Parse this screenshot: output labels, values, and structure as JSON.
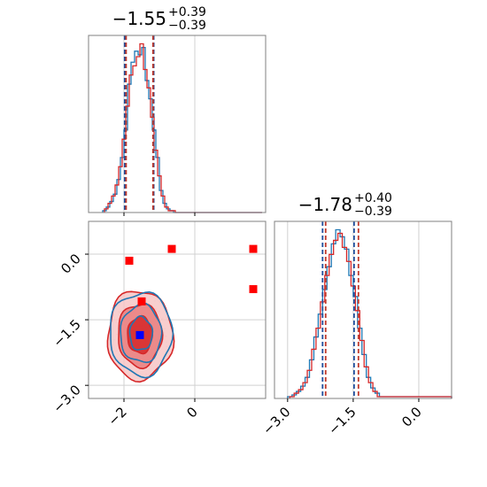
{
  "chart_data": [
    {
      "type": "histogram",
      "panel": "top-left",
      "title": {
        "median": "−1.55",
        "plus": "+0.39",
        "minus": "−0.39"
      },
      "xlim": [
        -3.0,
        2.0
      ],
      "x_grid": [
        -2,
        0
      ],
      "quantile_lines": [
        {
          "color": "#1f4e9c",
          "values": [
            -1.98,
            -1.16
          ]
        },
        {
          "color": "#c0392b",
          "values": [
            -1.94,
            -1.18
          ]
        }
      ],
      "series": [
        {
          "color": "#1f77b4",
          "bins": [
            -2.6,
            -2.5,
            -2.4,
            -2.3,
            -2.2,
            -2.1,
            -2.0,
            -1.9,
            -1.8,
            -1.7,
            -1.6,
            -1.5,
            -1.4,
            -1.3,
            -1.2,
            -1.1,
            -1.0,
            -0.9,
            -0.8,
            -0.7,
            -0.6,
            -0.5,
            1.9
          ],
          "counts": [
            1,
            3,
            6,
            10,
            18,
            30,
            45,
            70,
            82,
            88,
            86,
            90,
            72,
            62,
            45,
            30,
            12,
            5,
            2,
            1,
            0,
            0
          ]
        },
        {
          "color": "#d62728",
          "bins": [
            -2.55,
            -2.45,
            -2.35,
            -2.25,
            -2.15,
            -2.05,
            -1.95,
            -1.85,
            -1.75,
            -1.65,
            -1.55,
            -1.45,
            -1.35,
            -1.25,
            -1.15,
            -1.05,
            -0.95,
            -0.85,
            -0.75,
            -0.65,
            -0.55,
            1.9
          ],
          "counts": [
            2,
            5,
            9,
            15,
            25,
            40,
            58,
            75,
            80,
            85,
            92,
            78,
            68,
            52,
            34,
            20,
            9,
            3,
            1,
            1,
            0
          ]
        }
      ]
    },
    {
      "type": "scatter-contour",
      "panel": "bottom-left",
      "xlim": [
        -3.0,
        2.0
      ],
      "ylim": [
        -3.3,
        0.75
      ],
      "x_ticks": [
        "−2",
        "0"
      ],
      "x_tick_values": [
        -2,
        0
      ],
      "y_ticks": [
        "0.0",
        "−1.5",
        "−3.0"
      ],
      "y_tick_values": [
        0,
        -1.5,
        -3.0
      ],
      "red_markers": [
        {
          "x": -1.85,
          "y": -0.15
        },
        {
          "x": -0.65,
          "y": 0.12
        },
        {
          "x": 1.65,
          "y": 0.12
        },
        {
          "x": 1.65,
          "y": -0.8
        },
        {
          "x": -1.5,
          "y": -1.08
        }
      ],
      "blue_markers": [
        {
          "x": -1.55,
          "y": -1.85
        }
      ],
      "contours": [
        {
          "color": "#d62728",
          "center": [
            -1.55,
            -1.85
          ],
          "radii": [
            [
              0.35,
              0.42
            ],
            [
              0.62,
              0.72
            ],
            [
              0.92,
              1.02
            ]
          ]
        },
        {
          "color": "#1f77b4",
          "center": [
            -1.52,
            -1.82
          ],
          "radii": [
            [
              0.32,
              0.38
            ],
            [
              0.58,
              0.66
            ],
            [
              0.88,
              0.95
            ]
          ]
        }
      ]
    },
    {
      "type": "histogram",
      "panel": "bottom-right",
      "title": {
        "median": "−1.78",
        "plus": "+0.40",
        "minus": "−0.39"
      },
      "xlim": [
        -3.3,
        0.75
      ],
      "x_ticks": [
        "−3.0",
        "−1.5",
        "0.0"
      ],
      "x_tick_values": [
        -3.0,
        -1.5,
        0.0
      ],
      "quantile_lines": [
        {
          "color": "#1f4e9c",
          "values": [
            -2.2,
            -1.48
          ]
        },
        {
          "color": "#c0392b",
          "values": [
            -2.13,
            -1.38
          ]
        }
      ],
      "series": [
        {
          "color": "#1f77b4",
          "bins": [
            -3.0,
            -2.9,
            -2.8,
            -2.7,
            -2.6,
            -2.5,
            -2.4,
            -2.3,
            -2.2,
            -2.1,
            -2.0,
            -1.9,
            -1.8,
            -1.7,
            -1.6,
            -1.5,
            -1.4,
            -1.3,
            -1.2,
            -1.1,
            -1.0,
            -0.9,
            0.75
          ],
          "counts": [
            1,
            2,
            4,
            7,
            12,
            22,
            35,
            48,
            62,
            75,
            88,
            96,
            92,
            85,
            70,
            58,
            40,
            25,
            12,
            6,
            3,
            1
          ]
        },
        {
          "color": "#d62728",
          "bins": [
            -2.95,
            -2.85,
            -2.75,
            -2.65,
            -2.55,
            -2.45,
            -2.35,
            -2.25,
            -2.15,
            -2.05,
            -1.95,
            -1.85,
            -1.75,
            -1.65,
            -1.55,
            -1.45,
            -1.35,
            -1.25,
            -1.15,
            -1.05,
            -0.95,
            0.75
          ],
          "counts": [
            1,
            3,
            5,
            9,
            16,
            28,
            40,
            55,
            70,
            82,
            90,
            94,
            86,
            78,
            64,
            50,
            33,
            18,
            9,
            4,
            1
          ]
        }
      ]
    }
  ]
}
